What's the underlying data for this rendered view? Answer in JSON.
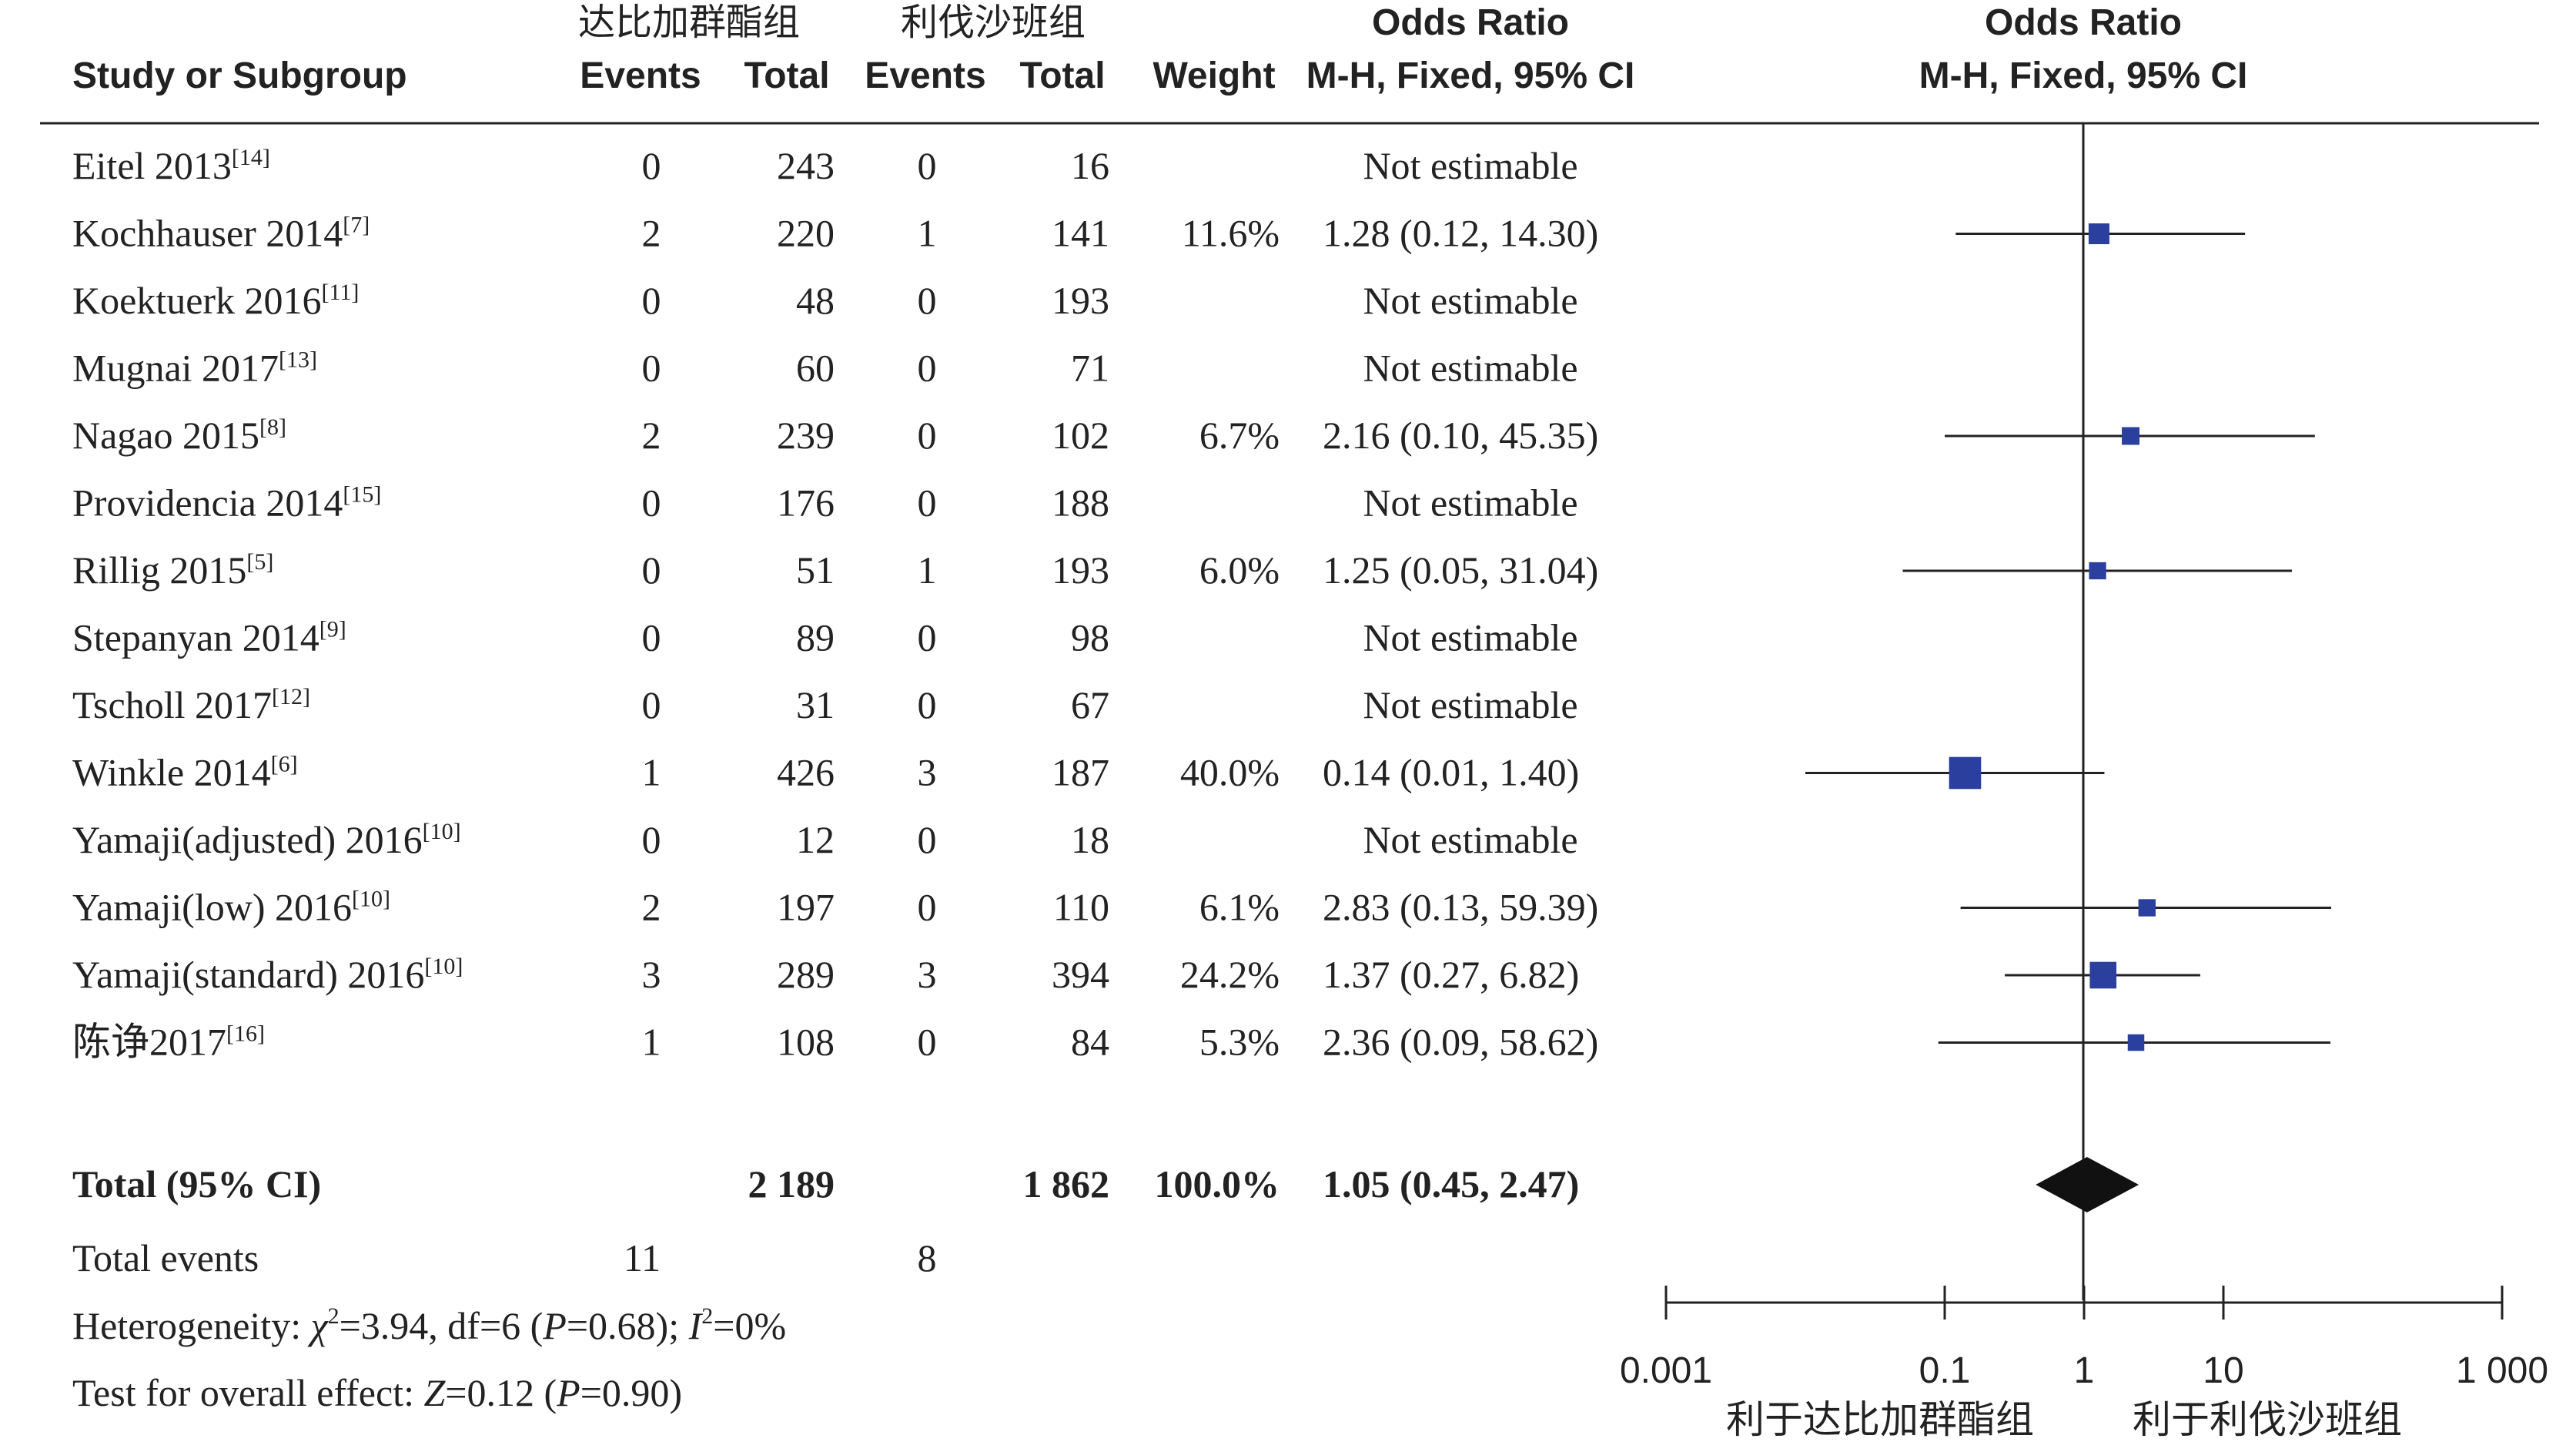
{
  "headers": {
    "study": "Study or Subgroup",
    "exp_group": "达比加群酯组",
    "ctrl_group": "利伐沙班组",
    "events": "Events",
    "total": "Total",
    "weight": "Weight",
    "or_title": "Odds Ratio",
    "or_method": "M-H, Fixed, 95% CI",
    "plot_title": "Odds Ratio",
    "plot_method": "M-H, Fixed, 95% CI"
  },
  "studies": [
    {
      "name": "Eitel 2013",
      "ref": "[14]",
      "exp_events": "0",
      "exp_total": "243",
      "ctrl_events": "0",
      "ctrl_total": "16",
      "weight": "",
      "ci_text": "Not estimable"
    },
    {
      "name": "Kochhauser 2014",
      "ref": "[7]",
      "exp_events": "2",
      "exp_total": "220",
      "ctrl_events": "1",
      "ctrl_total": "141",
      "weight": "11.6%",
      "ci_text": "1.28 (0.12, 14.30)"
    },
    {
      "name": "Koektuerk 2016",
      "ref": "[11]",
      "exp_events": "0",
      "exp_total": "48",
      "ctrl_events": "0",
      "ctrl_total": "193",
      "weight": "",
      "ci_text": "Not estimable"
    },
    {
      "name": "Mugnai 2017",
      "ref": "[13]",
      "exp_events": "0",
      "exp_total": "60",
      "ctrl_events": "0",
      "ctrl_total": "71",
      "weight": "",
      "ci_text": "Not estimable"
    },
    {
      "name": "Nagao 2015",
      "ref": "[8]",
      "exp_events": "2",
      "exp_total": "239",
      "ctrl_events": "0",
      "ctrl_total": "102",
      "weight": "6.7%",
      "ci_text": "2.16 (0.10, 45.35)"
    },
    {
      "name": "Providencia 2014",
      "ref": "[15]",
      "exp_events": "0",
      "exp_total": "176",
      "ctrl_events": "0",
      "ctrl_total": "188",
      "weight": "",
      "ci_text": "Not estimable"
    },
    {
      "name": "Rillig 2015",
      "ref": "[5]",
      "exp_events": "0",
      "exp_total": "51",
      "ctrl_events": "1",
      "ctrl_total": "193",
      "weight": "6.0%",
      "ci_text": "1.25 (0.05, 31.04)"
    },
    {
      "name": "Stepanyan 2014",
      "ref": "[9]",
      "exp_events": "0",
      "exp_total": "89",
      "ctrl_events": "0",
      "ctrl_total": "98",
      "weight": "",
      "ci_text": "Not estimable"
    },
    {
      "name": "Tscholl 2017",
      "ref": "[12]",
      "exp_events": "0",
      "exp_total": "31",
      "ctrl_events": "0",
      "ctrl_total": "67",
      "weight": "",
      "ci_text": "Not estimable"
    },
    {
      "name": "Winkle 2014",
      "ref": "[6]",
      "exp_events": "1",
      "exp_total": "426",
      "ctrl_events": "3",
      "ctrl_total": "187",
      "weight": "40.0%",
      "ci_text": "0.14 (0.01, 1.40)"
    },
    {
      "name": "Yamaji(adjusted) 2016",
      "ref": "[10]",
      "exp_events": "0",
      "exp_total": "12",
      "ctrl_events": "0",
      "ctrl_total": "18",
      "weight": "",
      "ci_text": "Not estimable"
    },
    {
      "name": "Yamaji(low) 2016",
      "ref": "[10]",
      "exp_events": "2",
      "exp_total": "197",
      "ctrl_events": "0",
      "ctrl_total": "110",
      "weight": "6.1%",
      "ci_text": "2.83 (0.13, 59.39)"
    },
    {
      "name": "Yamaji(standard) 2016",
      "ref": "[10]",
      "exp_events": "3",
      "exp_total": "289",
      "ctrl_events": "3",
      "ctrl_total": "394",
      "weight": "24.2%",
      "ci_text": "1.37 (0.27, 6.82)"
    },
    {
      "name": "陈诤2017",
      "ref": "[16]",
      "exp_events": "1",
      "exp_total": "108",
      "ctrl_events": "0",
      "ctrl_total": "84",
      "weight": "5.3%",
      "ci_text": "2.36 (0.09, 58.62)"
    }
  ],
  "total": {
    "label": "Total (95% CI)",
    "exp_total": "2 189",
    "ctrl_total": "1 862",
    "weight": "100.0%",
    "ci_text": "1.05 (0.45, 2.47)"
  },
  "total_events": {
    "label": "Total events",
    "exp": "11",
    "ctrl": "8"
  },
  "heterogeneity": {
    "prefix": "Heterogeneity: ",
    "chi_symbol": "χ",
    "chi_rest": "=3.94, df=6 (",
    "p_symbol": "P",
    "p_rest": "=0.68); ",
    "i_symbol": "I",
    "i_rest": "=0%"
  },
  "overall_effect": {
    "prefix": "Test for overall effect: ",
    "z_symbol": "Z",
    "z_rest": "=0.12 (",
    "p_symbol": "P",
    "p_rest": "=0.90)"
  },
  "axis": {
    "ticks": [
      {
        "value": 0.001,
        "label": "0.001"
      },
      {
        "value": 0.1,
        "label": "0.1"
      },
      {
        "value": 1,
        "label": "1"
      },
      {
        "value": 10,
        "label": "10"
      },
      {
        "value": 1000,
        "label": "1 000"
      }
    ],
    "favours_left": "利于达比加群酯组",
    "favours_right": "利于利伐沙班组"
  },
  "chart_data": {
    "type": "forest",
    "x_scale": "log",
    "xlim": [
      0.001,
      1000
    ],
    "reference_line": 1,
    "marker_color": "#2a3f9e",
    "diamond_color": "#111111",
    "points": [
      {
        "study": "Kochhauser 2014",
        "or": 1.28,
        "lower": 0.12,
        "upper": 14.3,
        "weight": 11.6
      },
      {
        "study": "Nagao 2015",
        "or": 2.16,
        "lower": 0.1,
        "upper": 45.35,
        "weight": 6.7
      },
      {
        "study": "Rillig 2015",
        "or": 1.25,
        "lower": 0.05,
        "upper": 31.04,
        "weight": 6.0
      },
      {
        "study": "Winkle 2014",
        "or": 0.14,
        "lower": 0.01,
        "upper": 1.4,
        "weight": 40.0
      },
      {
        "study": "Yamaji(low) 2016",
        "or": 2.83,
        "lower": 0.13,
        "upper": 59.39,
        "weight": 6.1
      },
      {
        "study": "Yamaji(standard) 2016",
        "or": 1.37,
        "lower": 0.27,
        "upper": 6.82,
        "weight": 24.2
      },
      {
        "study": "陈诤2017",
        "or": 2.36,
        "lower": 0.09,
        "upper": 58.62,
        "weight": 5.3
      }
    ],
    "pooled": {
      "or": 1.05,
      "lower": 0.45,
      "upper": 2.47,
      "weight": 100.0
    }
  }
}
